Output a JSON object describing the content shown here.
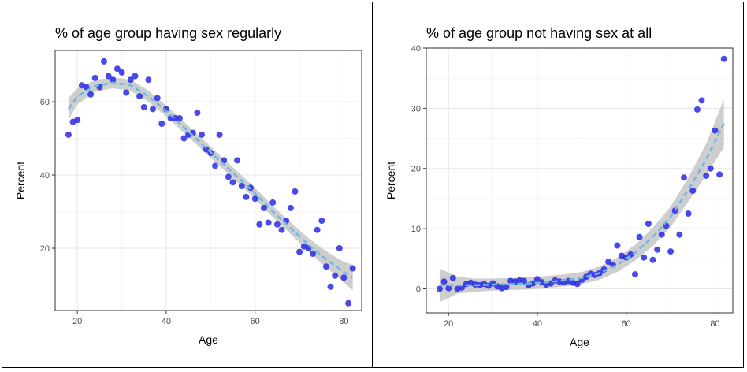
{
  "colors": {
    "point": "#2a2ae6",
    "smooth_line": "#6fb8e6",
    "ribbon": "#bdbdbd",
    "grid_major": "#e9e9e9",
    "grid_minor": "#f4f4f4",
    "axis_text": "#4d4d4d"
  },
  "chart_data": [
    {
      "type": "scatter",
      "title": "% of age group having sex regularly",
      "xlabel": "Age",
      "ylabel": "Percent",
      "xlim": [
        15,
        84
      ],
      "ylim": [
        3,
        74
      ],
      "xticks": [
        20,
        40,
        60,
        80
      ],
      "yticks": [
        20,
        40,
        60
      ],
      "grid": true,
      "smooth": "loess with confidence band",
      "points": [
        [
          18,
          51
        ],
        [
          19,
          54.5
        ],
        [
          20,
          55
        ],
        [
          21,
          64.5
        ],
        [
          22,
          64
        ],
        [
          23,
          62
        ],
        [
          24,
          66.5
        ],
        [
          25,
          64
        ],
        [
          26,
          71
        ],
        [
          27,
          67
        ],
        [
          28,
          66
        ],
        [
          29,
          69
        ],
        [
          30,
          68
        ],
        [
          31,
          62.5
        ],
        [
          32,
          66
        ],
        [
          33,
          67
        ],
        [
          34,
          61.5
        ],
        [
          35,
          58.5
        ],
        [
          36,
          66
        ],
        [
          37,
          58
        ],
        [
          38,
          61
        ],
        [
          39,
          54
        ],
        [
          40,
          58
        ],
        [
          41,
          55.5
        ],
        [
          42,
          55.5
        ],
        [
          43,
          55.5
        ],
        [
          44,
          50
        ],
        [
          45,
          51
        ],
        [
          46,
          51.5
        ],
        [
          47,
          57
        ],
        [
          48,
          51
        ],
        [
          49,
          47
        ],
        [
          50,
          46
        ],
        [
          51,
          42.5
        ],
        [
          52,
          51
        ],
        [
          53,
          44
        ],
        [
          54,
          39.5
        ],
        [
          55,
          38
        ],
        [
          56,
          44
        ],
        [
          57,
          37
        ],
        [
          58,
          34
        ],
        [
          59,
          36.5
        ],
        [
          60,
          33.5
        ],
        [
          61,
          26.5
        ],
        [
          62,
          31
        ],
        [
          63,
          27
        ],
        [
          64,
          32.5
        ],
        [
          65,
          26.5
        ],
        [
          66,
          25
        ],
        [
          67,
          27.5
        ],
        [
          68,
          31
        ],
        [
          69,
          35.5
        ],
        [
          70,
          19
        ],
        [
          71,
          20.5
        ],
        [
          72,
          20
        ],
        [
          73,
          18.5
        ],
        [
          74,
          25
        ],
        [
          75,
          27.5
        ],
        [
          76,
          15
        ],
        [
          77,
          9.5
        ],
        [
          78,
          12.5
        ],
        [
          79,
          20
        ],
        [
          80,
          12
        ],
        [
          81,
          5
        ],
        [
          82,
          14.5
        ]
      ],
      "fit": [
        [
          18,
          58,
          3
        ],
        [
          20,
          61.5,
          2.2
        ],
        [
          24,
          64.3,
          1.6
        ],
        [
          28,
          65.2,
          1.5
        ],
        [
          32,
          64.5,
          1.5
        ],
        [
          36,
          61.5,
          1.5
        ],
        [
          40,
          57.5,
          1.5
        ],
        [
          44,
          53,
          1.5
        ],
        [
          48,
          48.5,
          1.5
        ],
        [
          52,
          44,
          1.5
        ],
        [
          56,
          39.5,
          1.5
        ],
        [
          60,
          35,
          1.5
        ],
        [
          64,
          30,
          1.5
        ],
        [
          68,
          25.5,
          1.6
        ],
        [
          72,
          21,
          1.8
        ],
        [
          76,
          17,
          2.2
        ],
        [
          80,
          13.5,
          2.8
        ],
        [
          82,
          12,
          3.5
        ]
      ]
    },
    {
      "type": "scatter",
      "title": "% of age group not having sex at all",
      "xlabel": "Age",
      "ylabel": "Percent",
      "xlim": [
        15,
        84
      ],
      "ylim": [
        -4,
        40
      ],
      "xticks": [
        20,
        40,
        60,
        80
      ],
      "yticks": [
        0,
        10,
        20,
        30,
        40
      ],
      "grid": true,
      "smooth": "loess with confidence band",
      "points": [
        [
          18,
          0
        ],
        [
          19,
          1.2
        ],
        [
          20,
          0.1
        ],
        [
          21,
          1.8
        ],
        [
          22,
          0
        ],
        [
          23,
          0.2
        ],
        [
          24,
          0.8
        ],
        [
          25,
          1
        ],
        [
          26,
          0.7
        ],
        [
          27,
          0.6
        ],
        [
          28,
          0.8
        ],
        [
          29,
          0.5
        ],
        [
          30,
          0.9
        ],
        [
          31,
          0.4
        ],
        [
          32,
          0.1
        ],
        [
          33,
          0.3
        ],
        [
          34,
          1.3
        ],
        [
          35,
          1.2
        ],
        [
          36,
          1.4
        ],
        [
          37,
          1.3
        ],
        [
          38,
          0.6
        ],
        [
          39,
          0.9
        ],
        [
          40,
          1.6
        ],
        [
          41,
          1.1
        ],
        [
          42,
          0.7
        ],
        [
          43,
          0.9
        ],
        [
          44,
          1.4
        ],
        [
          45,
          1.2
        ],
        [
          46,
          1.1
        ],
        [
          47,
          1.3
        ],
        [
          48,
          1
        ],
        [
          49,
          0.8
        ],
        [
          50,
          1.5
        ],
        [
          51,
          2
        ],
        [
          52,
          2.5
        ],
        [
          53,
          2.3
        ],
        [
          54,
          2.6
        ],
        [
          55,
          3.2
        ],
        [
          56,
          4.5
        ],
        [
          57,
          4
        ],
        [
          58,
          7.2
        ],
        [
          59,
          5.5
        ],
        [
          60,
          5.2
        ],
        [
          61,
          5.7
        ],
        [
          62,
          2.4
        ],
        [
          63,
          8.6
        ],
        [
          64,
          5.2
        ],
        [
          65,
          10.8
        ],
        [
          66,
          4.8
        ],
        [
          67,
          6.5
        ],
        [
          68,
          9
        ],
        [
          69,
          10.5
        ],
        [
          70,
          6.2
        ],
        [
          71,
          13
        ],
        [
          72,
          9
        ],
        [
          73,
          18.5
        ],
        [
          74,
          12.5
        ],
        [
          75,
          16.3
        ],
        [
          76,
          29.8
        ],
        [
          77,
          31.3
        ],
        [
          78,
          18.8
        ],
        [
          79,
          20
        ],
        [
          80,
          26.3
        ],
        [
          81,
          19
        ],
        [
          82,
          38.2
        ]
      ],
      "fit": [
        [
          18,
          0.6,
          2.8
        ],
        [
          22,
          0.6,
          1.4
        ],
        [
          26,
          0.6,
          1.1
        ],
        [
          30,
          0.7,
          1
        ],
        [
          34,
          0.8,
          1
        ],
        [
          38,
          0.9,
          1
        ],
        [
          42,
          1.1,
          1
        ],
        [
          46,
          1.4,
          1
        ],
        [
          50,
          1.8,
          1
        ],
        [
          54,
          2.6,
          1.1
        ],
        [
          58,
          4,
          1.2
        ],
        [
          62,
          6,
          1.3
        ],
        [
          66,
          8.6,
          1.5
        ],
        [
          70,
          12,
          1.7
        ],
        [
          74,
          16.5,
          2
        ],
        [
          78,
          21.5,
          2.6
        ],
        [
          82,
          27.5,
          4
        ]
      ]
    }
  ]
}
